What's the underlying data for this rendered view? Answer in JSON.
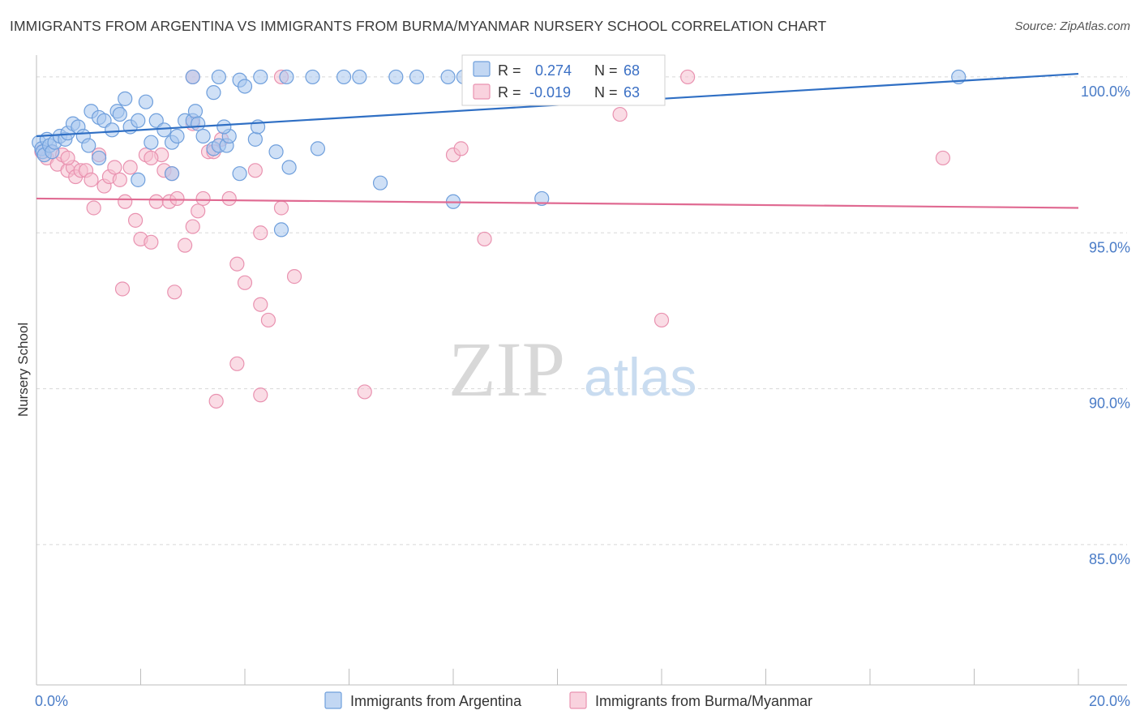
{
  "title": "IMMIGRANTS FROM ARGENTINA VS IMMIGRANTS FROM BURMA/MYANMAR NURSERY SCHOOL CORRELATION CHART",
  "source": "Source: ZipAtlas.com",
  "watermark": {
    "zip": "ZIP",
    "atlas": "atlas"
  },
  "colors": {
    "argentina_fill": "#a8c6ee",
    "argentina_stroke": "#6f9fdc",
    "argentina_line": "#2f6fc4",
    "burma_fill": "#f6bfd0",
    "burma_stroke": "#e992b0",
    "burma_line": "#e06a92",
    "tick_label": "#4a7cc7",
    "grid": "#d8d8d8"
  },
  "chart_data": {
    "type": "scatter",
    "title": "IMMIGRANTS FROM ARGENTINA VS IMMIGRANTS FROM BURMA/MYANMAR NURSERY SCHOOL CORRELATION CHART",
    "xlabel": "",
    "ylabel": "Nursery School",
    "xlim": [
      0,
      20
    ],
    "ylim": [
      80.5,
      100.7
    ],
    "x_tick_labels": [
      {
        "value": 0,
        "label": "0.0%"
      },
      {
        "value": 20,
        "label": "20.0%"
      }
    ],
    "y_tick_labels": [
      {
        "value": 100,
        "label": "100.0%"
      },
      {
        "value": 95,
        "label": "95.0%"
      },
      {
        "value": 90,
        "label": "90.0%"
      },
      {
        "value": 85,
        "label": "85.0%"
      }
    ],
    "grid": true,
    "legend_position": "bottom-center",
    "stats_box_position": "top-center",
    "series": [
      {
        "name": "Immigrants from Argentina",
        "stats": {
          "r_label": "R =",
          "r_value": "0.274",
          "n_label": "N =",
          "n_value": "68"
        },
        "trend": {
          "x": [
            0,
            20
          ],
          "y": [
            98.1,
            100.1
          ]
        },
        "points": [
          [
            0.05,
            97.9
          ],
          [
            0.1,
            97.7
          ],
          [
            0.12,
            97.6
          ],
          [
            0.15,
            97.5
          ],
          [
            0.2,
            98.0
          ],
          [
            0.25,
            97.8
          ],
          [
            0.3,
            97.6
          ],
          [
            0.35,
            97.9
          ],
          [
            0.45,
            98.1
          ],
          [
            0.55,
            98.0
          ],
          [
            0.6,
            98.2
          ],
          [
            0.7,
            98.5
          ],
          [
            0.8,
            98.4
          ],
          [
            0.9,
            98.1
          ],
          [
            1.0,
            97.8
          ],
          [
            1.05,
            98.9
          ],
          [
            1.2,
            98.7
          ],
          [
            1.3,
            98.6
          ],
          [
            1.45,
            98.3
          ],
          [
            1.55,
            98.9
          ],
          [
            1.6,
            98.8
          ],
          [
            1.7,
            99.3
          ],
          [
            1.8,
            98.4
          ],
          [
            1.95,
            98.6
          ],
          [
            2.1,
            99.2
          ],
          [
            2.2,
            97.9
          ],
          [
            2.3,
            98.6
          ],
          [
            2.45,
            98.3
          ],
          [
            2.6,
            97.9
          ],
          [
            2.7,
            98.1
          ],
          [
            2.85,
            98.6
          ],
          [
            3.0,
            98.6
          ],
          [
            3.05,
            98.9
          ],
          [
            3.1,
            98.5
          ],
          [
            3.2,
            98.1
          ],
          [
            3.4,
            97.7
          ],
          [
            3.5,
            97.8
          ],
          [
            3.65,
            97.8
          ],
          [
            3.7,
            98.1
          ],
          [
            3.9,
            96.9
          ],
          [
            4.2,
            98.0
          ],
          [
            4.25,
            98.4
          ],
          [
            4.6,
            97.6
          ],
          [
            4.85,
            97.1
          ],
          [
            3.6,
            98.4
          ],
          [
            1.95,
            96.7
          ],
          [
            2.6,
            96.9
          ],
          [
            1.2,
            97.4
          ],
          [
            5.4,
            97.7
          ],
          [
            6.6,
            96.6
          ],
          [
            8.0,
            96.0
          ],
          [
            9.7,
            96.1
          ],
          [
            3.0,
            100.0
          ],
          [
            3.5,
            100.0
          ],
          [
            3.9,
            99.9
          ],
          [
            4.3,
            100.0
          ],
          [
            4.8,
            100.0
          ],
          [
            5.3,
            100.0
          ],
          [
            5.9,
            100.0
          ],
          [
            6.2,
            100.0
          ],
          [
            6.9,
            100.0
          ],
          [
            7.3,
            100.0
          ],
          [
            7.9,
            100.0
          ],
          [
            8.2,
            100.0
          ],
          [
            3.4,
            99.5
          ],
          [
            4.0,
            99.7
          ],
          [
            4.7,
            95.1
          ],
          [
            17.7,
            100.0
          ]
        ]
      },
      {
        "name": "Immigrants from Burma/Myanmar",
        "stats": {
          "r_label": "R =",
          "r_value": "-0.019",
          "n_label": "N =",
          "n_value": "63"
        },
        "trend": {
          "x": [
            0,
            20
          ],
          "y": [
            96.1,
            95.8
          ]
        },
        "points": [
          [
            0.1,
            97.6
          ],
          [
            0.2,
            97.4
          ],
          [
            0.3,
            97.6
          ],
          [
            0.4,
            97.2
          ],
          [
            0.5,
            97.5
          ],
          [
            0.6,
            97.0
          ],
          [
            0.7,
            97.1
          ],
          [
            0.75,
            96.8
          ],
          [
            0.85,
            97.0
          ],
          [
            0.95,
            97.0
          ],
          [
            1.05,
            96.7
          ],
          [
            1.2,
            97.5
          ],
          [
            1.3,
            96.5
          ],
          [
            1.4,
            96.8
          ],
          [
            1.5,
            97.1
          ],
          [
            1.6,
            96.7
          ],
          [
            1.7,
            96.0
          ],
          [
            1.8,
            97.1
          ],
          [
            1.9,
            95.4
          ],
          [
            2.0,
            94.8
          ],
          [
            2.1,
            97.5
          ],
          [
            2.2,
            94.7
          ],
          [
            2.3,
            96.0
          ],
          [
            2.4,
            97.5
          ],
          [
            2.45,
            97.0
          ],
          [
            2.55,
            96.0
          ],
          [
            2.6,
            96.9
          ],
          [
            2.7,
            96.1
          ],
          [
            2.85,
            94.6
          ],
          [
            3.0,
            95.2
          ],
          [
            3.1,
            95.7
          ],
          [
            3.2,
            96.1
          ],
          [
            3.3,
            97.6
          ],
          [
            3.4,
            97.6
          ],
          [
            3.55,
            98.0
          ],
          [
            3.7,
            96.1
          ],
          [
            3.85,
            94.0
          ],
          [
            4.0,
            93.4
          ],
          [
            4.2,
            97.0
          ],
          [
            4.3,
            95.0
          ],
          [
            4.45,
            92.2
          ],
          [
            4.7,
            95.8
          ],
          [
            4.95,
            93.6
          ],
          [
            3.0,
            98.5
          ],
          [
            1.65,
            93.2
          ],
          [
            2.65,
            93.1
          ],
          [
            3.45,
            89.6
          ],
          [
            3.85,
            90.8
          ],
          [
            4.3,
            89.8
          ],
          [
            6.3,
            89.9
          ],
          [
            4.3,
            92.7
          ],
          [
            8.0,
            97.5
          ],
          [
            8.15,
            97.7
          ],
          [
            8.6,
            94.8
          ],
          [
            12.0,
            92.2
          ],
          [
            17.4,
            97.4
          ],
          [
            3.0,
            100.0
          ],
          [
            4.7,
            100.0
          ],
          [
            12.5,
            100.0
          ],
          [
            11.2,
            98.8
          ],
          [
            1.1,
            95.8
          ],
          [
            0.6,
            97.4
          ],
          [
            2.2,
            97.4
          ]
        ]
      }
    ]
  },
  "legend": {
    "items": [
      {
        "label": "Immigrants from Argentina"
      },
      {
        "label": "Immigrants from Burma/Myanmar"
      }
    ]
  }
}
